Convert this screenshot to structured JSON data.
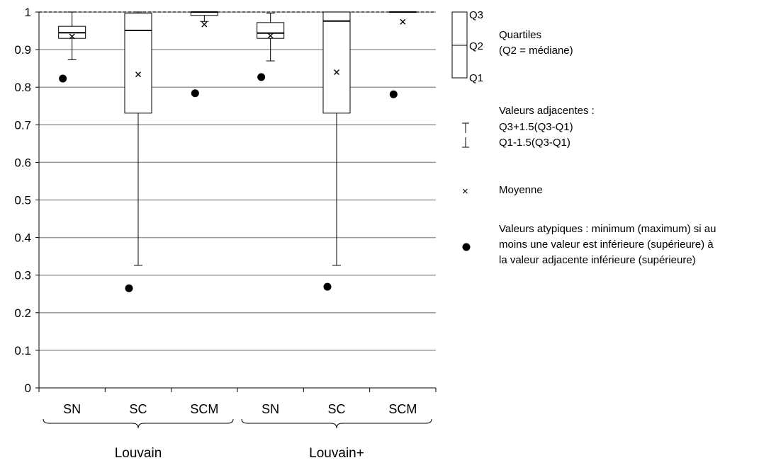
{
  "chart_data": {
    "type": "boxplot",
    "ylim": [
      0,
      1
    ],
    "y_ticks": [
      "0",
      "0.1",
      "0.2",
      "0.3",
      "0.4",
      "0.5",
      "0.6",
      "0.7",
      "0.8",
      "0.9",
      "1"
    ],
    "grid": true,
    "categories": [
      "SN",
      "SC",
      "SCM",
      "SN",
      "SC",
      "SCM"
    ],
    "groups": [
      {
        "label": "Louvain",
        "categories": [
          "SN",
          "SC",
          "SCM"
        ]
      },
      {
        "label": "Louvain+",
        "categories": [
          "SN",
          "SC",
          "SCM"
        ]
      }
    ],
    "boxes": [
      {
        "category": "SN",
        "group": "Louvain",
        "whisker_low": 0.873,
        "q1": 0.93,
        "median": 0.945,
        "q3": 0.962,
        "whisker_high": 1.0,
        "mean": 0.935,
        "outliers": [
          0.823
        ]
      },
      {
        "category": "SC",
        "group": "Louvain",
        "whisker_low": 0.326,
        "q1": 0.731,
        "median": 0.951,
        "q3": 0.997,
        "whisker_high": 1.0,
        "mean": 0.834,
        "outliers": [
          0.265
        ]
      },
      {
        "category": "SCM",
        "group": "Louvain",
        "whisker_low": 0.975,
        "q1": 0.991,
        "median": 1.0,
        "q3": 1.0,
        "whisker_high": 1.0,
        "mean": 0.967,
        "outliers": [
          0.784
        ]
      },
      {
        "category": "SN",
        "group": "Louvain+",
        "whisker_low": 0.87,
        "q1": 0.93,
        "median": 0.944,
        "q3": 0.972,
        "whisker_high": 0.997,
        "mean": 0.937,
        "outliers": [
          0.827
        ]
      },
      {
        "category": "SC",
        "group": "Louvain+",
        "whisker_low": 0.326,
        "q1": 0.731,
        "median": 0.976,
        "q3": 1.0,
        "whisker_high": 1.0,
        "mean": 0.84,
        "outliers": [
          0.269
        ]
      },
      {
        "category": "SCM",
        "group": "Louvain+",
        "whisker_low": 1.0,
        "q1": 1.0,
        "median": 1.0,
        "q3": 1.0,
        "whisker_high": 1.0,
        "mean": 0.974,
        "outliers": [
          0.781
        ]
      }
    ]
  },
  "legend": {
    "quartiles_q3": "Q3",
    "quartiles_q2": "Q2",
    "quartiles_q1": "Q1",
    "quartiles_title": "Quartiles",
    "quartiles_subtitle": "(Q2 = médiane)",
    "adjacent_title": "Valeurs adjacentes :",
    "adjacent_upper": "Q3+1.5(Q3-Q1)",
    "adjacent_lower": "Q1-1.5(Q3-Q1)",
    "mean_symbol": "×",
    "mean_label": "Moyenne",
    "outlier_line1": "Valeurs atypiques : minimum (maximum) si au",
    "outlier_line2": "moins une valeur est inférieure (supérieure) à",
    "outlier_line3": "la valeur adjacente inférieure (supérieure)"
  }
}
